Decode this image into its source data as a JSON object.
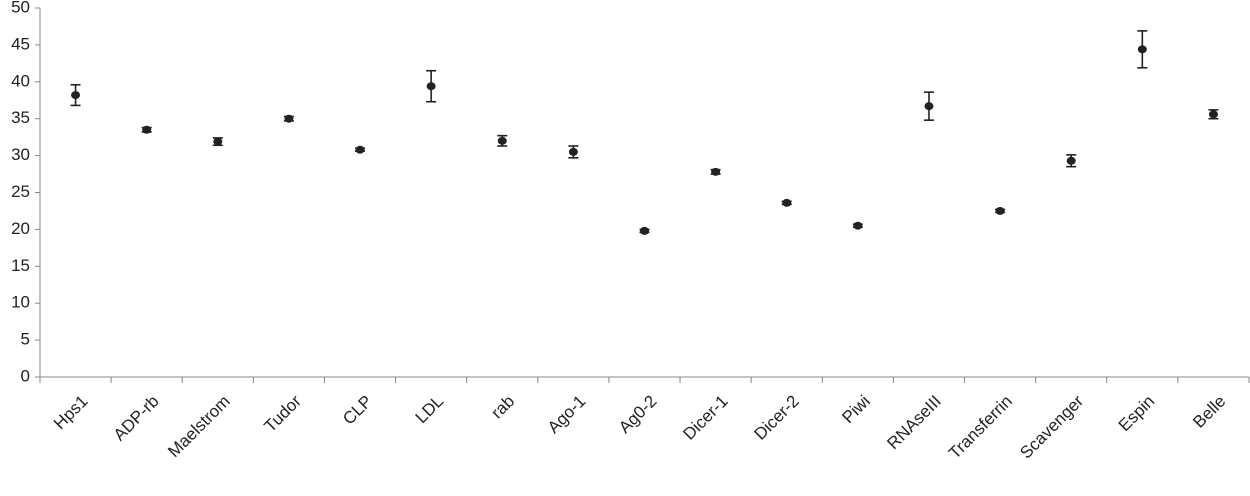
{
  "chart_data": {
    "type": "errorbar-dot",
    "categories": [
      "Hps1",
      "ADP-rb",
      "Maelstrom",
      "Tudor",
      "CLP",
      "LDL",
      "rab",
      "Ago-1",
      "Ag0-2",
      "Dicer-1",
      "Dicer-2",
      "Piwi",
      "RNAseIII",
      "Transferrin",
      "Scavenger",
      "Espin",
      "Belle"
    ],
    "values": [
      38.2,
      33.5,
      31.9,
      35.0,
      30.8,
      39.4,
      32.0,
      30.5,
      19.8,
      27.8,
      23.6,
      20.5,
      36.7,
      22.5,
      29.3,
      44.4,
      35.6
    ],
    "errors": [
      1.4,
      0.3,
      0.5,
      0.3,
      0.2,
      2.1,
      0.7,
      0.8,
      0.2,
      0.3,
      0.2,
      0.2,
      1.9,
      0.2,
      0.8,
      2.5,
      0.6
    ],
    "color": "#222222",
    "ylim": [
      0,
      50
    ],
    "yticks": [
      0,
      5,
      10,
      15,
      20,
      25,
      30,
      35,
      40,
      45,
      50
    ],
    "grid": false
  }
}
